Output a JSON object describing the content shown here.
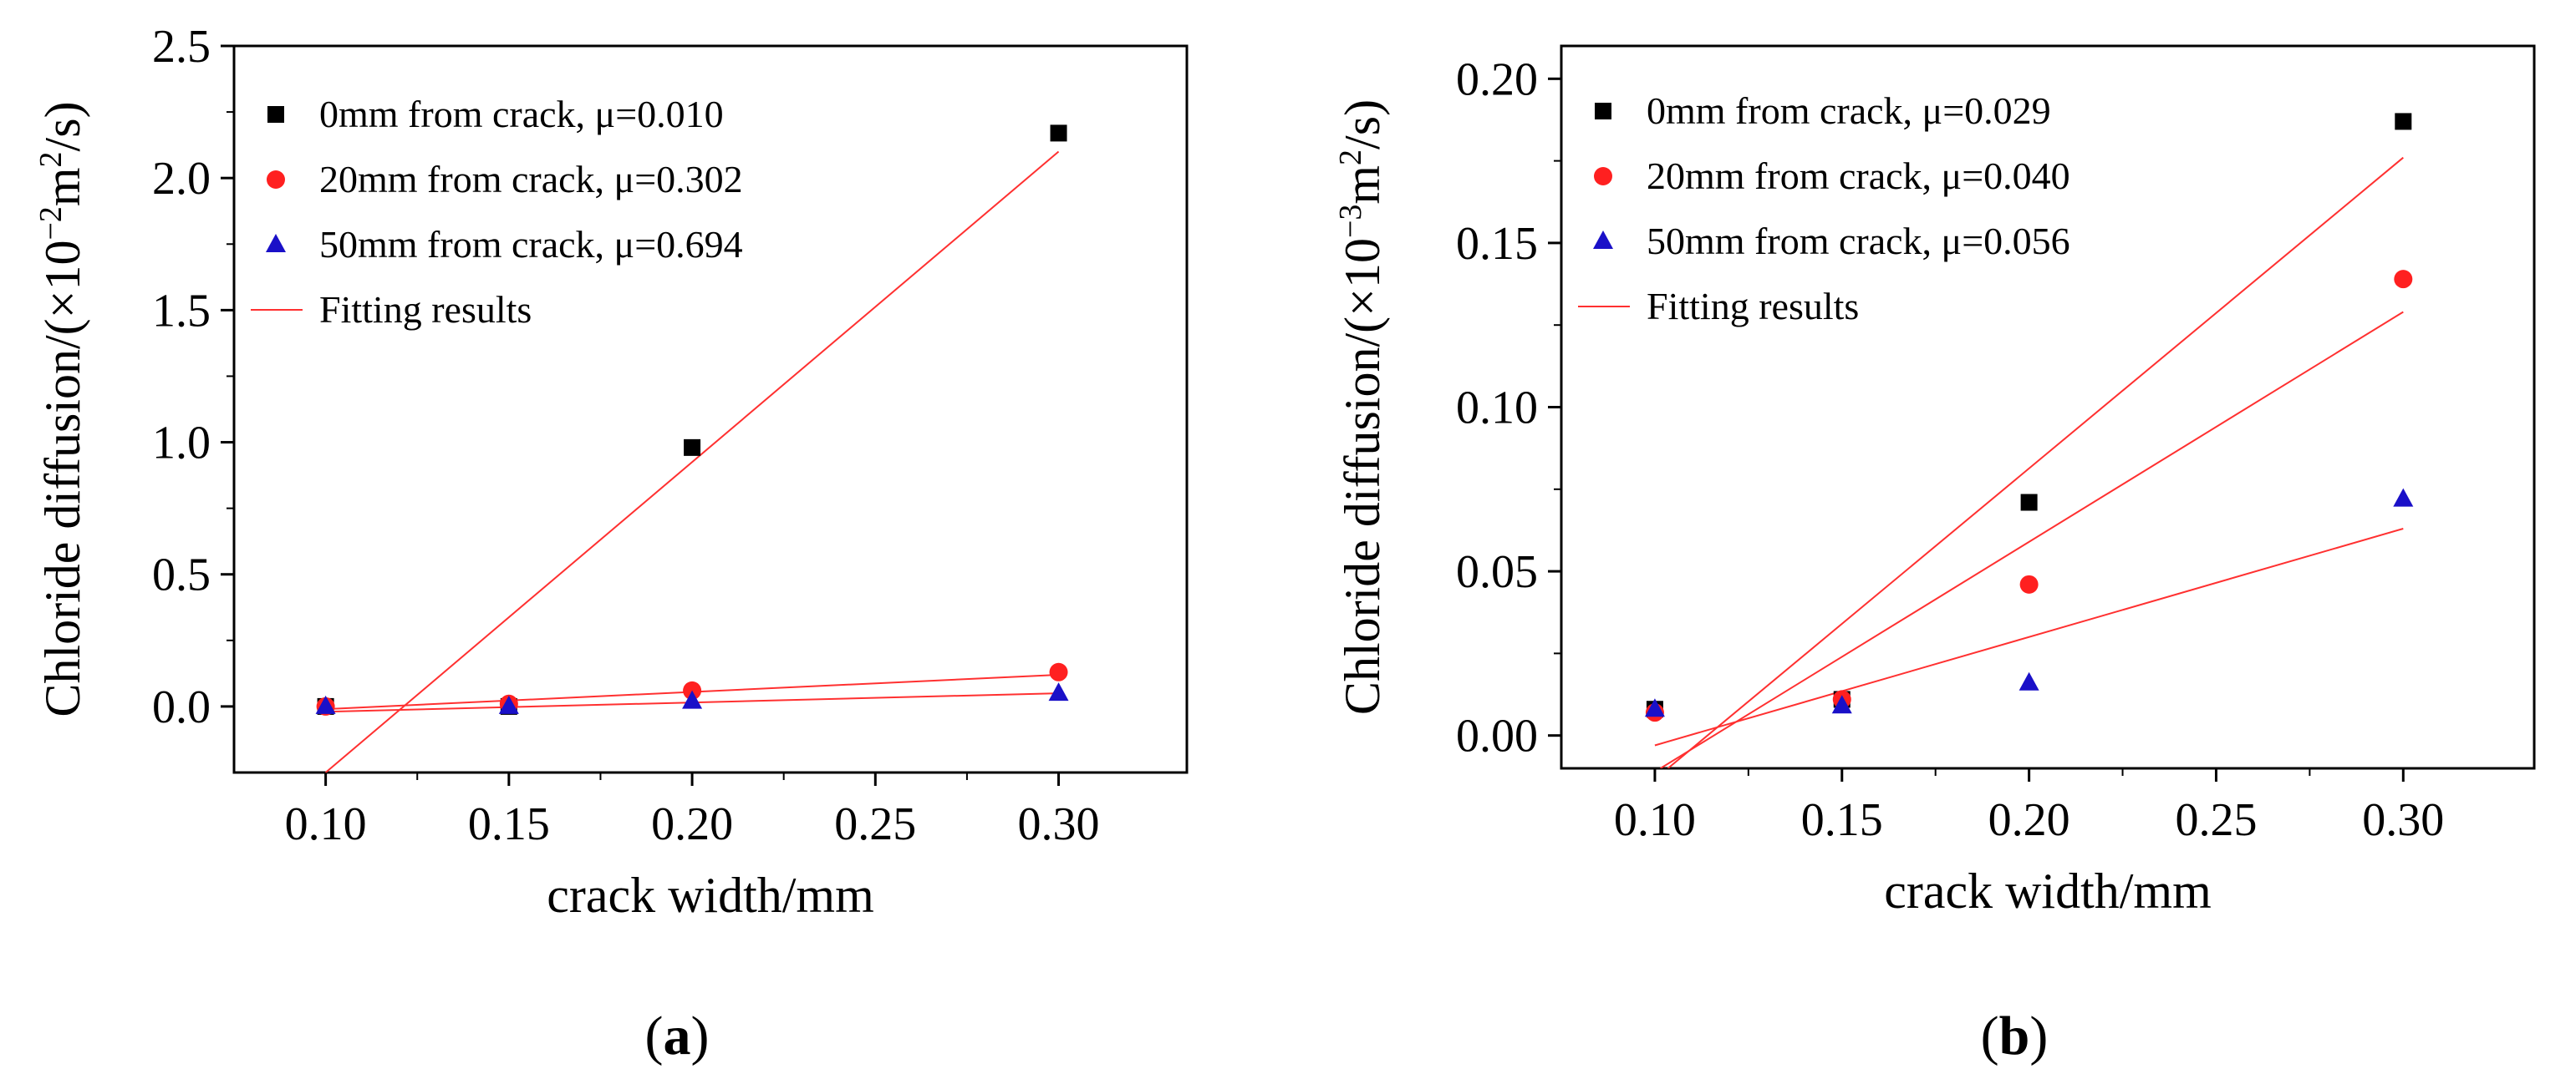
{
  "colors": {
    "black": "#000000",
    "red": "#ff2020",
    "blue": "#1a10c8",
    "fit_line": "#ff3030"
  },
  "chart_data": [
    {
      "id": "a",
      "type": "scatter",
      "panel_label_open": "(",
      "panel_label_letter": "a",
      "panel_label_close": ")",
      "xlabel": "crack width/mm",
      "ylabel_prefix": "Chloride diffusion/(×10",
      "ylabel_exp": "−2",
      "ylabel_unit": "m",
      "ylabel_unit_exp": "2",
      "ylabel_suffix": "/s)",
      "xlim": [
        0.075,
        0.335
      ],
      "ylim": [
        -0.25,
        2.5
      ],
      "xticks": [
        0.1,
        0.15,
        0.2,
        0.25,
        0.3
      ],
      "yticks": [
        0.0,
        0.5,
        1.0,
        1.5,
        2.0,
        2.5
      ],
      "xtick_labels": [
        "0.10",
        "0.15",
        "0.20",
        "0.25",
        "0.30"
      ],
      "ytick_labels": [
        "0.0",
        "0.5",
        "1.0",
        "1.5",
        "2.0",
        "2.5"
      ],
      "series": [
        {
          "name": "0mm from crack, μ=0.010",
          "marker": "square",
          "color": "#000000",
          "x": [
            0.1,
            0.15,
            0.2,
            0.3
          ],
          "y": [
            0.0,
            0.0,
            0.98,
            2.17
          ]
        },
        {
          "name": "20mm from crack, μ=0.302",
          "marker": "circle",
          "color": "#ff2020",
          "x": [
            0.1,
            0.15,
            0.2,
            0.3
          ],
          "y": [
            0.0,
            0.01,
            0.06,
            0.13
          ]
        },
        {
          "name": "50mm from crack, μ=0.694",
          "marker": "triangle",
          "color": "#1a10c8",
          "x": [
            0.1,
            0.15,
            0.2,
            0.3
          ],
          "y": [
            0.0,
            0.0,
            0.02,
            0.05
          ]
        }
      ],
      "fit_legend": "Fitting results",
      "fits": [
        {
          "x": [
            0.1,
            0.3
          ],
          "y": [
            -0.25,
            2.1
          ]
        },
        {
          "x": [
            0.1,
            0.3
          ],
          "y": [
            -0.01,
            0.12
          ]
        },
        {
          "x": [
            0.1,
            0.3
          ],
          "y": [
            -0.02,
            0.05
          ]
        }
      ]
    },
    {
      "id": "b",
      "type": "scatter",
      "panel_label_open": "(",
      "panel_label_letter": "b",
      "panel_label_close": ")",
      "xlabel": "crack width/mm",
      "ylabel_prefix": "Chloride diffusion/(×10",
      "ylabel_exp": "−3",
      "ylabel_unit": "m",
      "ylabel_unit_exp": "2",
      "ylabel_suffix": "/s)",
      "xlim": [
        0.075,
        0.335
      ],
      "ylim": [
        -0.01,
        0.21
      ],
      "xticks": [
        0.1,
        0.15,
        0.2,
        0.25,
        0.3
      ],
      "yticks": [
        0.0,
        0.05,
        0.1,
        0.15,
        0.2
      ],
      "xtick_labels": [
        "0.10",
        "0.15",
        "0.20",
        "0.25",
        "0.30"
      ],
      "ytick_labels": [
        "0.00",
        "0.05",
        "0.10",
        "0.15",
        "0.20"
      ],
      "series": [
        {
          "name": "0mm from crack, μ=0.029",
          "marker": "square",
          "color": "#000000",
          "x": [
            0.1,
            0.15,
            0.2,
            0.3
          ],
          "y": [
            0.008,
            0.011,
            0.071,
            0.187
          ]
        },
        {
          "name": "20mm from crack, μ=0.040",
          "marker": "circle",
          "color": "#ff2020",
          "x": [
            0.1,
            0.15,
            0.2,
            0.3
          ],
          "y": [
            0.007,
            0.011,
            0.046,
            0.139
          ]
        },
        {
          "name": "50mm from crack, μ=0.056",
          "marker": "triangle",
          "color": "#1a10c8",
          "x": [
            0.1,
            0.15,
            0.2,
            0.3
          ],
          "y": [
            0.008,
            0.009,
            0.016,
            0.072
          ]
        }
      ],
      "fit_legend": "Fitting results",
      "fits": [
        {
          "x": [
            0.1035,
            0.3
          ],
          "y": [
            -0.01,
            0.176
          ]
        },
        {
          "x": [
            0.1015,
            0.3
          ],
          "y": [
            -0.01,
            0.129
          ]
        },
        {
          "x": [
            0.1,
            0.3
          ],
          "y": [
            -0.003,
            0.063
          ]
        }
      ]
    }
  ]
}
